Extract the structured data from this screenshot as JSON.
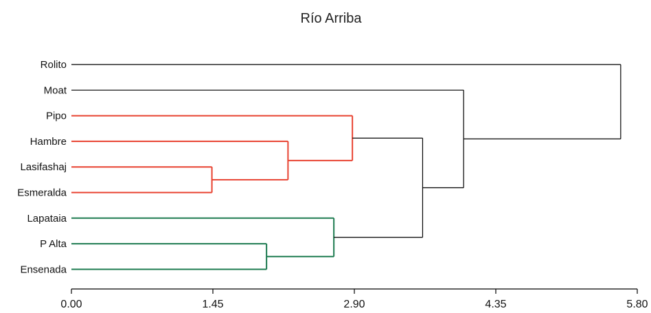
{
  "chart_data": {
    "type": "dendrogram",
    "title": "Río Arriba",
    "leaves": [
      "Rolito",
      "Moat",
      "Pipo",
      "Hambre",
      "Lasifashaj",
      "Esmeralda",
      "Lapataia",
      "P Alta",
      "Ensenada"
    ],
    "xlim": [
      0,
      5.8
    ],
    "xticks": [
      0.0,
      1.45,
      2.9,
      4.35,
      5.8
    ],
    "xtick_labels": [
      "0.00",
      "1.45",
      "2.90",
      "4.35",
      "5.80"
    ],
    "grid": false,
    "merges": [
      {
        "id": "n1",
        "children": [
          "Lasifashaj",
          "Esmeralda"
        ],
        "height": 1.44
      },
      {
        "id": "n2",
        "children": [
          "Hambre",
          "n1"
        ],
        "height": 2.22
      },
      {
        "id": "n3",
        "children": [
          "Pipo",
          "n2"
        ],
        "height": 2.88
      },
      {
        "id": "n4",
        "children": [
          "P Alta",
          "Ensenada"
        ],
        "height": 2.0
      },
      {
        "id": "n5",
        "children": [
          "Lapataia",
          "n4"
        ],
        "height": 2.69
      },
      {
        "id": "n6",
        "children": [
          "n3",
          "n5"
        ],
        "height": 3.6
      },
      {
        "id": "n7",
        "children": [
          "Moat",
          "n6"
        ],
        "height": 4.02
      },
      {
        "id": "n8",
        "children": [
          "Rolito",
          "n7"
        ],
        "height": 5.63
      }
    ],
    "cluster_colors": {
      "n3": "#e8412f",
      "n5": "#1b7a4f"
    },
    "default_color": "#000000"
  }
}
